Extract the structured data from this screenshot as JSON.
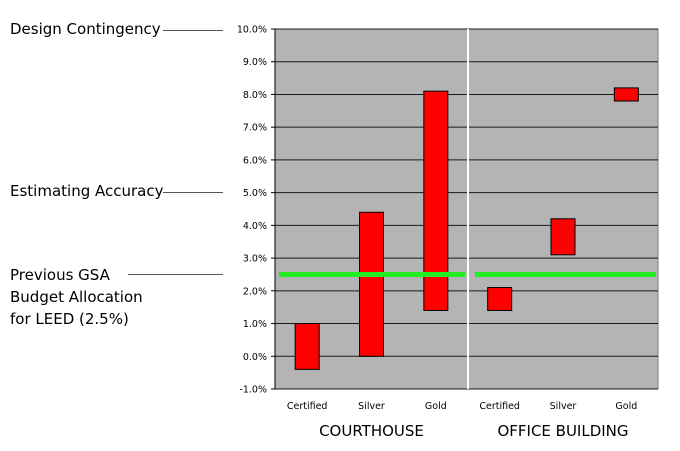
{
  "annotations": {
    "design_contingency": "Design Contingency",
    "estimating_accuracy": "Estimating Accuracy",
    "previous_gsa": [
      "Previous GSA",
      "Budget Allocation",
      "for LEED (2.5%)"
    ]
  },
  "colors": {
    "plot_background": "#b4b4b4",
    "bar_fill": "#ff0000",
    "reference_line": "#22ee22",
    "divider": "#ffffff"
  },
  "chart_data": {
    "type": "bar",
    "subtype": "floating-range",
    "ylim": [
      -1.0,
      10.0
    ],
    "y_tick_labels": [
      "-1.0%",
      "0.0%",
      "1.0%",
      "2.0%",
      "3.0%",
      "4.0%",
      "5.0%",
      "6.0%",
      "7.0%",
      "8.0%",
      "9.0%",
      "10.0%"
    ],
    "y_ticks": [
      -1,
      0,
      1,
      2,
      3,
      4,
      5,
      6,
      7,
      8,
      9,
      10
    ],
    "grid": true,
    "groups": [
      {
        "label": "COURTHOUSE",
        "categories": [
          "Certified",
          "Silver",
          "Gold"
        ],
        "ranges": [
          [
            -0.4,
            1.0
          ],
          [
            0.0,
            4.4
          ],
          [
            1.4,
            8.1
          ]
        ]
      },
      {
        "label": "OFFICE BUILDING",
        "categories": [
          "Certified",
          "Silver",
          "Gold"
        ],
        "ranges": [
          [
            1.4,
            2.1
          ],
          [
            3.1,
            4.2
          ],
          [
            7.8,
            8.2
          ]
        ]
      }
    ],
    "reference_line": 2.5
  }
}
